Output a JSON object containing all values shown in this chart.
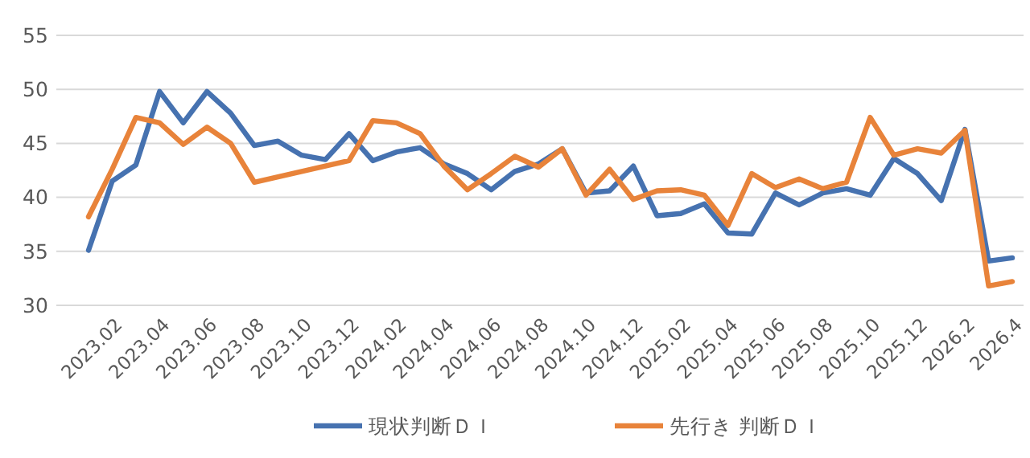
{
  "chart_data": {
    "type": "line",
    "categories": [
      null,
      "2023.02",
      null,
      "2023.04",
      null,
      "2023.06",
      null,
      "2023.08",
      null,
      "2023.10",
      null,
      "2023.12",
      null,
      "2024.02",
      null,
      "2024.04",
      null,
      "2024.06",
      null,
      "2024.08",
      null,
      "2024.10",
      null,
      "2024.12",
      null,
      "2025.02",
      null,
      "2025.04",
      null,
      "2025.06",
      null,
      "2025.08",
      null,
      "2025.10",
      null,
      "2025.12",
      null,
      "2026.2",
      null,
      "2026.4"
    ],
    "series": [
      {
        "name": "現状判断ＤＩ",
        "color": "#4672b0",
        "values": [
          35.1,
          41.5,
          43.0,
          49.8,
          46.9,
          49.8,
          47.8,
          44.8,
          45.2,
          43.9,
          43.5,
          45.9,
          43.4,
          44.2,
          44.6,
          43.1,
          42.2,
          40.7,
          42.4,
          43.1,
          44.5,
          40.4,
          40.6,
          42.9,
          38.3,
          38.5,
          39.4,
          36.7,
          36.6,
          40.4,
          39.3,
          40.4,
          40.8,
          40.2,
          43.6,
          42.2,
          39.7,
          46.3,
          34.1,
          34.4
        ]
      },
      {
        "name": "先行き 判断ＤＩ",
        "color": "#e8833a",
        "values": [
          38.2,
          42.6,
          47.4,
          46.9,
          44.9,
          46.5,
          45.0,
          41.4,
          41.9,
          42.4,
          42.9,
          43.4,
          47.1,
          46.9,
          45.9,
          42.9,
          40.7,
          42.2,
          43.8,
          42.8,
          44.5,
          40.2,
          42.6,
          39.8,
          40.6,
          40.7,
          40.2,
          37.4,
          42.2,
          40.9,
          41.7,
          40.8,
          41.4,
          47.4,
          43.9,
          44.5,
          44.1,
          46.2,
          31.8,
          32.2
        ]
      }
    ],
    "ylim": [
      30,
      55
    ],
    "yticks": [
      30,
      35,
      40,
      45,
      50,
      55
    ],
    "grid": "y",
    "legend": "bottom",
    "marker": "none",
    "line_style": "solid"
  }
}
